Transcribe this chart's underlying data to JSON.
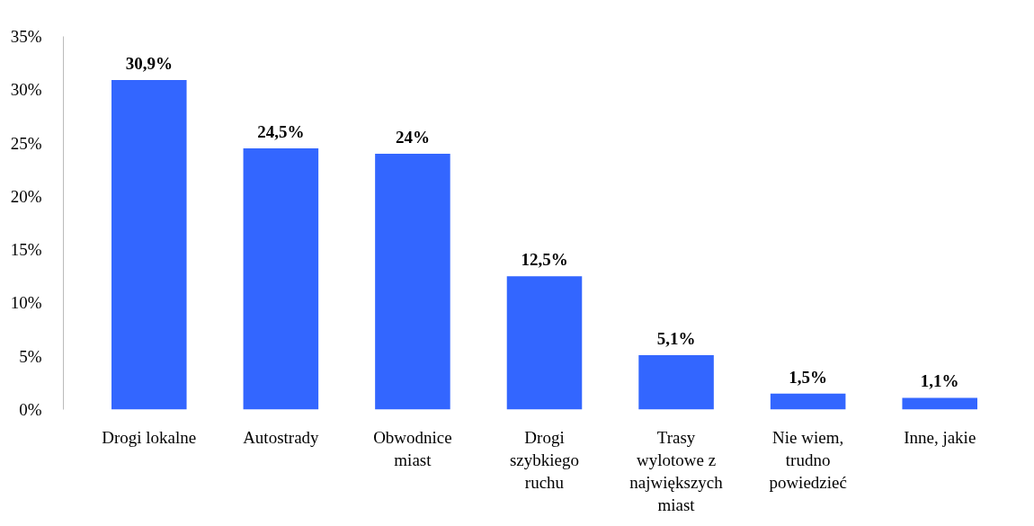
{
  "chart_data": {
    "type": "bar",
    "categories": [
      "Drogi lokalne",
      "Autostrady",
      "Obwodnice miast",
      "Drogi szybkiego ruchu",
      "Trasy wylotowe z największych miast",
      "Nie wiem, trudno powiedzieć",
      "Inne, jakie"
    ],
    "values": [
      30.9,
      24.5,
      24,
      12.5,
      5.1,
      1.5,
      1.1
    ],
    "value_labels": [
      "30,9%",
      "24,5%",
      "24%",
      "12,5%",
      "5,1%",
      "1,5%",
      "1,1%"
    ],
    "color": "#3366ff",
    "ylim": [
      0,
      35
    ],
    "yticks": [
      {
        "value": 0,
        "label": "0%"
      },
      {
        "value": 5,
        "label": "5%"
      },
      {
        "value": 10,
        "label": "10%"
      },
      {
        "value": 15,
        "label": "15%"
      },
      {
        "value": 20,
        "label": "20%"
      },
      {
        "value": 25,
        "label": "25%"
      },
      {
        "value": 30,
        "label": "30%"
      },
      {
        "value": 35,
        "label": "35%"
      }
    ],
    "grid": false
  }
}
